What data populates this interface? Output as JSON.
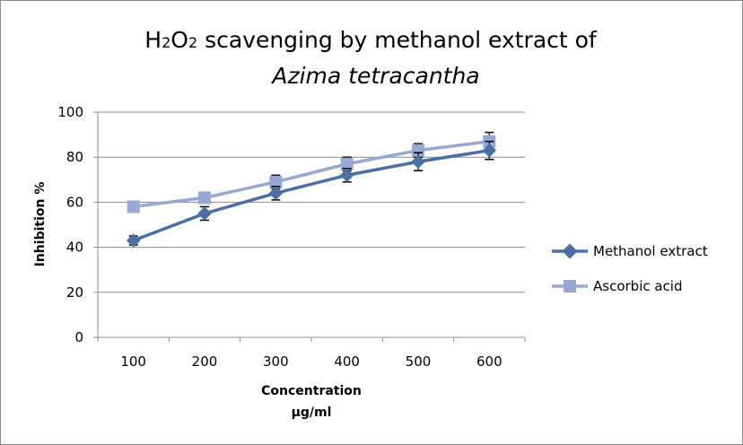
{
  "chart_data": {
    "type": "line",
    "title_line1_parts": [
      "H",
      "2",
      "O",
      "2",
      " scavenging by methanol extract of"
    ],
    "title_line2": "Azima tetracantha",
    "xlabel_line1": "Concentration",
    "xlabel_line2": "µg/ml",
    "ylabel": "Inhibition %",
    "categories": [
      "100",
      "200",
      "300",
      "400",
      "500",
      "600"
    ],
    "ylim": [
      0,
      100
    ],
    "yticks": [
      "0",
      "20",
      "40",
      "60",
      "80",
      "100"
    ],
    "grid": true,
    "legend_position": "right",
    "series": [
      {
        "name": "Methanol extract",
        "values": [
          43,
          55,
          64,
          72,
          78,
          83
        ],
        "errors": [
          2,
          3,
          3,
          3,
          4,
          4
        ],
        "color": "#4a6fa5",
        "marker": "diamond"
      },
      {
        "name": "Ascorbic acid",
        "values": [
          58,
          62,
          69,
          77,
          83,
          87
        ],
        "errors": [
          1,
          1,
          3,
          3,
          3,
          4
        ],
        "color": "#95a9d2",
        "marker": "square"
      }
    ]
  }
}
